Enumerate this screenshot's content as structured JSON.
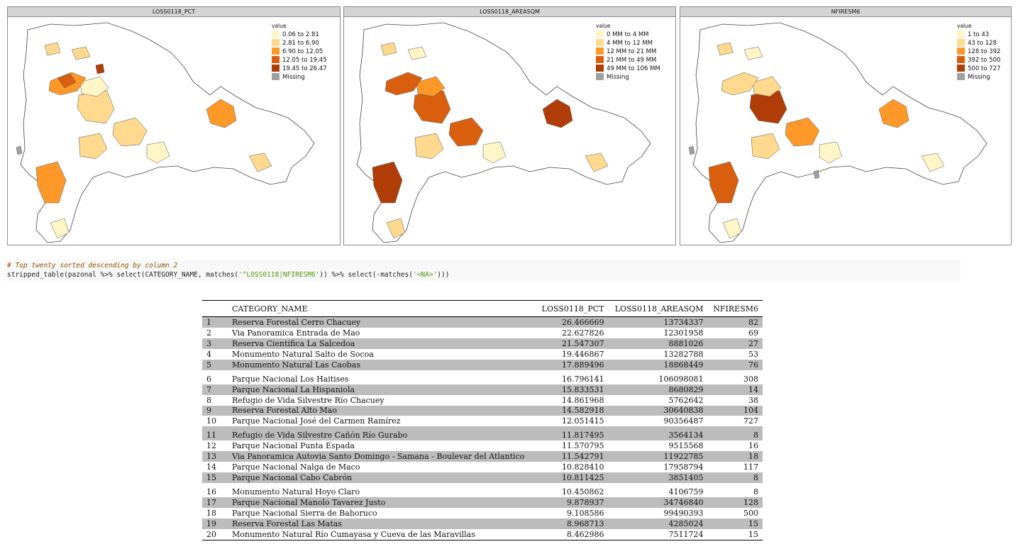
{
  "maps": [
    {
      "title": "LOSS0118_PCT",
      "legend_title": "value",
      "classes": [
        "0.06 to 2.81",
        "2.81 to 6.90",
        "6.90 to 12.05",
        "12.05 to 19.45",
        "19.45 to 26.47",
        "Missing"
      ]
    },
    {
      "title": "LOSS0118_AREASQM",
      "legend_title": "value",
      "classes": [
        "0 MM to 4 MM",
        "4 MM to 12 MM",
        "12 MM to 21 MM",
        "21 MM to 49 MM",
        "49 MM to 106 MM",
        "Missing"
      ]
    },
    {
      "title": "NFIRESM6",
      "legend_title": "value",
      "classes": [
        "1 to 43",
        "43 to 128",
        "128 to 392",
        "392 to 500",
        "500 to 727",
        "Missing"
      ]
    }
  ],
  "palette": [
    "#fff5c6",
    "#fed98e",
    "#fe9929",
    "#d95f0e",
    "#b13d06",
    "#a0a0a0"
  ],
  "code": {
    "comment": "# Top twenty sorted descending by column 2",
    "line_pre": "stripped_table(pazonal %>% select(CATEGORY_NAME, matches(",
    "string1": "'^LOSS0118|NFIRESM6'",
    "line_mid": ")) %>% select(-matches(",
    "string2": "'<NA>'",
    "line_post": ")))"
  },
  "chart_data": {
    "type": "table",
    "columns": [
      "",
      "CATEGORY_NAME",
      "LOSS0118_PCT",
      "LOSS0118_AREASQM",
      "NFIRESM6"
    ],
    "rows": [
      [
        "1",
        "Reserva Forestal Cerro Chacuey",
        "26.466669",
        "13734337",
        "82"
      ],
      [
        "2",
        "Via Panoramica Entrada de Mao",
        "22.627826",
        "12301958",
        "69"
      ],
      [
        "3",
        "Reserva Cientifica La Salcedoa",
        "21.547307",
        "8881026",
        "27"
      ],
      [
        "4",
        "Monumento Natural Salto de Socoa",
        "19.446867",
        "13282788",
        "53"
      ],
      [
        "5",
        "Monumento Natural Las Caobas",
        "17.889496",
        "18868449",
        "76"
      ],
      [
        "6",
        "Parque Nacional Los Haitises",
        "16.796141",
        "106098081",
        "308"
      ],
      [
        "7",
        "Parque Nacional La Hispaniola",
        "15.833531",
        "8680829",
        "14"
      ],
      [
        "8",
        "Refugio de Vida Silvestre Río Chacuey",
        "14.861968",
        "5762642",
        "38"
      ],
      [
        "9",
        "Reserva Forestal Alto Mao",
        "14.582918",
        "30640838",
        "104"
      ],
      [
        "10",
        "Parque Nacional José del Carmen Ramírez",
        "12.051415",
        "90356487",
        "727"
      ],
      [
        "11",
        "Refugio de Vida Silvestre Cañón Río Gurabo",
        "11.817495",
        "3564134",
        "8"
      ],
      [
        "12",
        "Parque Nacional Punta Espada",
        "11.570795",
        "9515568",
        "16"
      ],
      [
        "13",
        "Via Panoramica Autovia Santo Domingo - Samana - Boulevar del Atlantico",
        "11.542791",
        "11922785",
        "18"
      ],
      [
        "14",
        "Parque Nacional Nalga de Maco",
        "10.828410",
        "17958794",
        "117"
      ],
      [
        "15",
        "Parque Nacional Cabo Cabrón",
        "10.811425",
        "3851405",
        "8"
      ],
      [
        "16",
        "Monumento Natural Hoyo Claro",
        "10.450862",
        "4106759",
        "8"
      ],
      [
        "17",
        "Parque Nacional Manolo Tavarez Justo",
        "9.878937",
        "34746840",
        "128"
      ],
      [
        "18",
        "Parque Nacional Sierra de Bahoruco",
        "9.108586",
        "99490393",
        "500"
      ],
      [
        "19",
        "Reserva Forestal Las Matas",
        "8.968713",
        "4285024",
        "15"
      ],
      [
        "20",
        "Monumento Natural Río Cumayasa y Cueva de las Maravillas",
        "8.462986",
        "7511724",
        "15"
      ]
    ]
  }
}
